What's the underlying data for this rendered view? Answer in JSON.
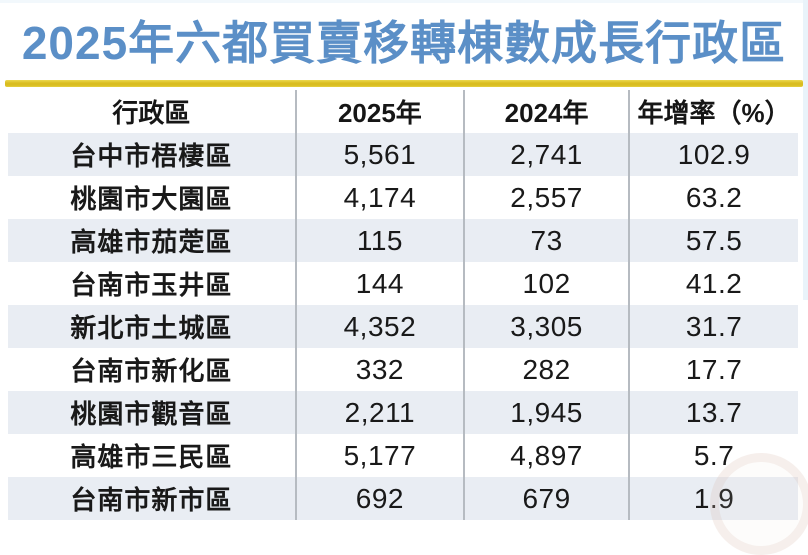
{
  "title": "2025年六都買賣移轉棟數成長行政區",
  "colors": {
    "title_blue": "#5b8fc7",
    "underline_gold": "#d9bd21",
    "row_blue": "#e9edf3",
    "divider_gray": "#b6bbc1",
    "text_black": "#191919"
  },
  "table": {
    "columns": [
      "行政區",
      "2025年",
      "2024年",
      "年增率（%）"
    ],
    "rows": [
      {
        "district": "台中市梧棲區",
        "y2025": "5,561",
        "y2024": "2,741",
        "growth": "102.9"
      },
      {
        "district": "桃園市大園區",
        "y2025": "4,174",
        "y2024": "2,557",
        "growth": "63.2"
      },
      {
        "district": "高雄市茄萣區",
        "y2025": "115",
        "y2024": "73",
        "growth": "57.5"
      },
      {
        "district": "台南市玉井區",
        "y2025": "144",
        "y2024": "102",
        "growth": "41.2"
      },
      {
        "district": "新北市土城區",
        "y2025": "4,352",
        "y2024": "3,305",
        "growth": "31.7"
      },
      {
        "district": "台南市新化區",
        "y2025": "332",
        "y2024": "282",
        "growth": "17.7"
      },
      {
        "district": "桃園市觀音區",
        "y2025": "2,211",
        "y2024": "1,945",
        "growth": "13.7"
      },
      {
        "district": "高雄市三民區",
        "y2025": "5,177",
        "y2024": "4,897",
        "growth": "5.7"
      },
      {
        "district": "台南市新市區",
        "y2025": "692",
        "y2024": "679",
        "growth": "1.9"
      }
    ]
  },
  "chart_data": {
    "type": "table",
    "title": "2025年六都買賣移轉棟數成長行政區",
    "columns": [
      "行政區",
      "2025年",
      "2024年",
      "年增率（%）"
    ],
    "rows": [
      [
        "台中市梧棲區",
        5561,
        2741,
        102.9
      ],
      [
        "桃園市大園區",
        4174,
        2557,
        63.2
      ],
      [
        "高雄市茄萣區",
        115,
        73,
        57.5
      ],
      [
        "台南市玉井區",
        144,
        102,
        41.2
      ],
      [
        "新北市土城區",
        4352,
        3305,
        31.7
      ],
      [
        "台南市新化區",
        332,
        282,
        17.7
      ],
      [
        "桃園市觀音區",
        2211,
        1945,
        13.7
      ],
      [
        "高雄市三民區",
        5177,
        4897,
        5.7
      ],
      [
        "台南市新市區",
        692,
        679,
        1.9
      ]
    ],
    "layout_hints": {
      "header_background": "#ffffff",
      "alternating_row_background": "#e9edf3",
      "grid": "vertical-dividers-only"
    }
  }
}
